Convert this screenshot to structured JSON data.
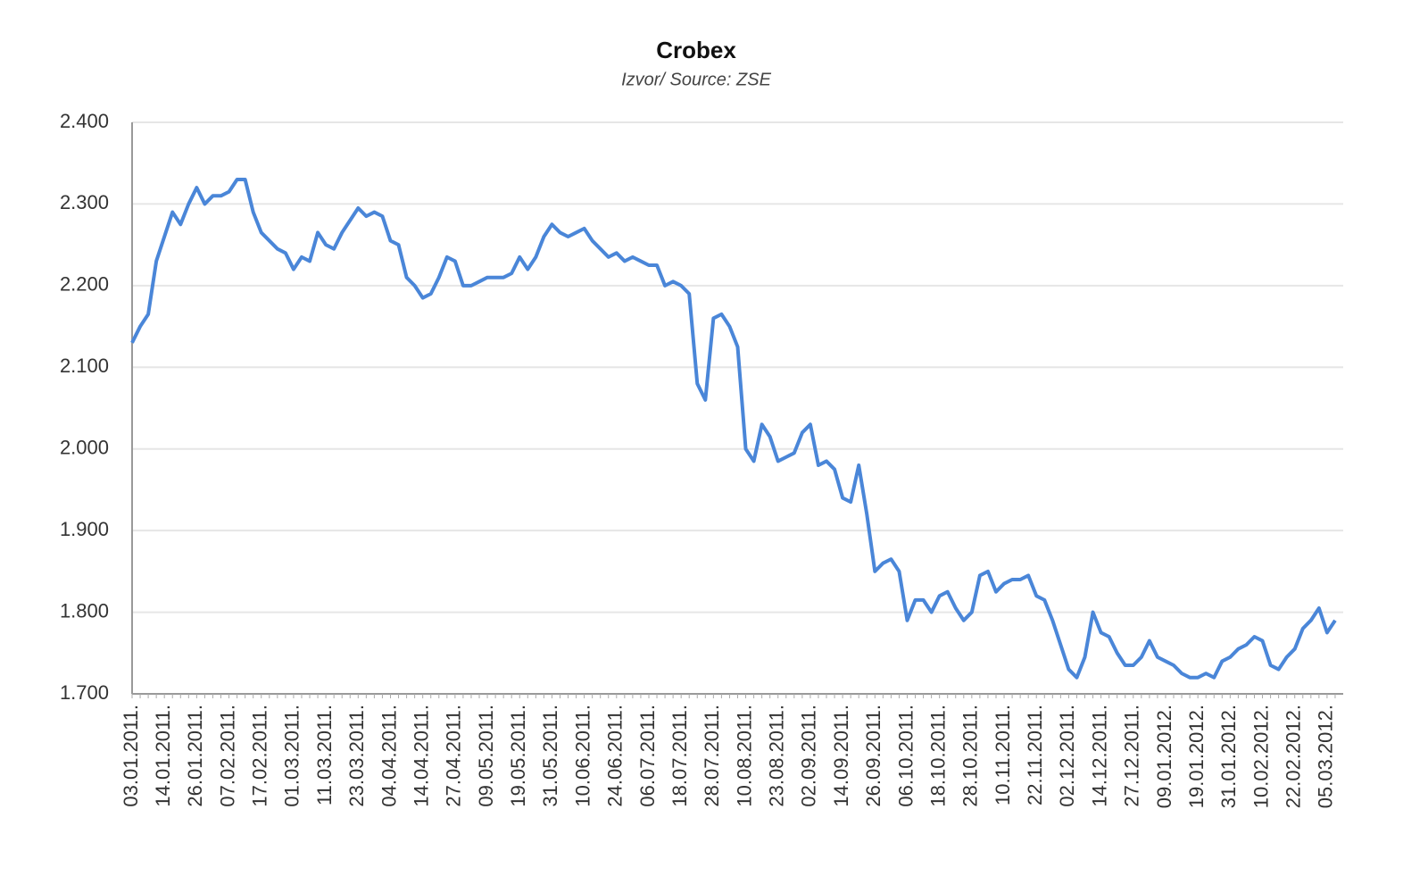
{
  "chart_data": {
    "type": "line",
    "title": "Crobex",
    "subtitle": "Izvor/ Source: ZSE",
    "categories": [
      "03.01.2011.",
      null,
      null,
      null,
      "14.01.2011.",
      null,
      null,
      null,
      "26.01.2011.",
      null,
      null,
      null,
      "07.02.2011.",
      null,
      null,
      null,
      "17.02.2011.",
      null,
      null,
      null,
      "01.03.2011.",
      null,
      null,
      null,
      "11.03.2011.",
      null,
      null,
      null,
      "23.03.2011.",
      null,
      null,
      null,
      "04.04.2011.",
      null,
      null,
      null,
      "14.04.2011.",
      null,
      null,
      null,
      "27.04.2011.",
      null,
      null,
      null,
      "09.05.2011.",
      null,
      null,
      null,
      "19.05.2011.",
      null,
      null,
      null,
      "31.05.2011.",
      null,
      null,
      null,
      "10.06.2011.",
      null,
      null,
      null,
      "24.06.2011.",
      null,
      null,
      null,
      "06.07.2011.",
      null,
      null,
      null,
      "18.07.2011.",
      null,
      null,
      null,
      "28.07.2011.",
      null,
      null,
      null,
      "10.08.2011.",
      null,
      null,
      null,
      "23.08.2011.",
      null,
      null,
      null,
      "02.09.2011.",
      null,
      null,
      null,
      "14.09.2011.",
      null,
      null,
      null,
      "26.09.2011.",
      null,
      null,
      null,
      "06.10.2011.",
      null,
      null,
      null,
      "18.10.2011.",
      null,
      null,
      null,
      "28.10.2011.",
      null,
      null,
      null,
      "10.11.2011.",
      null,
      null,
      null,
      "22.11.2011.",
      null,
      null,
      null,
      "02.12.2011.",
      null,
      null,
      null,
      "14.12.2011.",
      null,
      null,
      null,
      "27.12.2011.",
      null,
      null,
      null,
      "09.01.2012.",
      null,
      null,
      null,
      "19.01.2012.",
      null,
      null,
      null,
      "31.01.2012.",
      null,
      null,
      null,
      "10.02.2012.",
      null,
      null,
      null,
      "22.02.2012.",
      null,
      null,
      null,
      "05.03.2012.",
      null
    ],
    "values": [
      2130,
      2150,
      2165,
      2230,
      2260,
      2290,
      2275,
      2300,
      2320,
      2300,
      2310,
      2310,
      2315,
      2330,
      2330,
      2290,
      2265,
      2255,
      2245,
      2240,
      2220,
      2235,
      2230,
      2265,
      2250,
      2245,
      2265,
      2280,
      2295,
      2285,
      2290,
      2285,
      2255,
      2250,
      2210,
      2200,
      2185,
      2190,
      2210,
      2235,
      2230,
      2200,
      2200,
      2205,
      2210,
      2210,
      2210,
      2215,
      2235,
      2220,
      2235,
      2260,
      2275,
      2265,
      2260,
      2265,
      2270,
      2255,
      2245,
      2235,
      2240,
      2230,
      2235,
      2230,
      2225,
      2225,
      2200,
      2205,
      2200,
      2190,
      2080,
      2060,
      2160,
      2165,
      2150,
      2125,
      2000,
      1985,
      2030,
      2015,
      1985,
      1990,
      1995,
      2020,
      2030,
      1980,
      1985,
      1975,
      1940,
      1935,
      1980,
      1920,
      1850,
      1860,
      1865,
      1850,
      1790,
      1815,
      1815,
      1800,
      1820,
      1825,
      1805,
      1790,
      1800,
      1845,
      1850,
      1825,
      1835,
      1840,
      1840,
      1845,
      1820,
      1815,
      1790,
      1760,
      1730,
      1720,
      1745,
      1800,
      1775,
      1770,
      1750,
      1735,
      1735,
      1745,
      1765,
      1745,
      1740,
      1735,
      1725,
      1720,
      1720,
      1725,
      1720,
      1740,
      1745,
      1755,
      1760,
      1770,
      1765,
      1735,
      1730,
      1745,
      1755,
      1780,
      1790,
      1805,
      1775,
      1790
    ],
    "color": "#4a86d8",
    "ylim": [
      1700,
      2400
    ],
    "yticks": [
      {
        "value": 1700,
        "label": "1.700"
      },
      {
        "value": 1800,
        "label": "1.800"
      },
      {
        "value": 1900,
        "label": "1.900"
      },
      {
        "value": 2000,
        "label": "2.000"
      },
      {
        "value": 2100,
        "label": "2.100"
      },
      {
        "value": 2200,
        "label": "2.200"
      },
      {
        "value": 2300,
        "label": "2.300"
      },
      {
        "value": 2400,
        "label": "2.400"
      }
    ],
    "grid": true
  }
}
